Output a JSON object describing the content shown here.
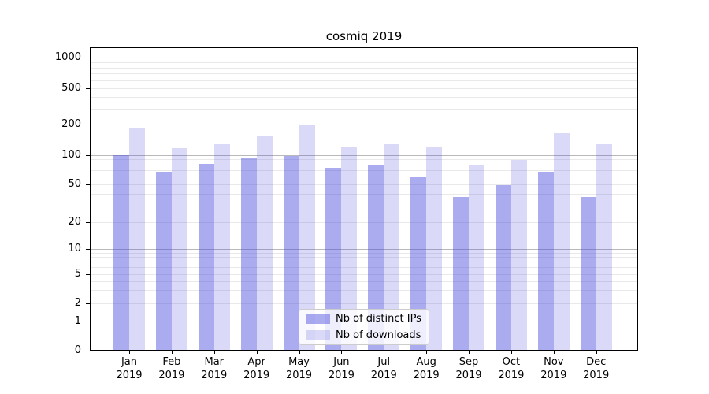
{
  "title": "cosmiq 2019",
  "legend": {
    "items": [
      {
        "label": "Nb of distinct IPs",
        "series": "ips"
      },
      {
        "label": "Nb of downloads",
        "series": "downloads"
      }
    ]
  },
  "colors": {
    "ips_bar": "rgba(68,68,221,0.45)",
    "downloads_bar": "rgba(68,68,221,0.2)",
    "major_gridline": "#b8b8b8",
    "minor_gridline": "#e9e9e9",
    "axis": "#000000",
    "legend_border": "#cccccc"
  },
  "y_axis": {
    "tick_values": [
      1000,
      500,
      200,
      100,
      50,
      20,
      10,
      5,
      2,
      1,
      0
    ],
    "major_gridline_values": [
      1,
      10,
      100,
      1000
    ],
    "minor_gridline_values": [
      2,
      3,
      4,
      5,
      6,
      7,
      8,
      9,
      20,
      30,
      40,
      50,
      60,
      70,
      80,
      90,
      200,
      300,
      400,
      500,
      600,
      700,
      800,
      900
    ]
  },
  "chart_data": {
    "type": "bar",
    "title": "cosmiq 2019",
    "categories": [
      "Jan 2019",
      "Feb 2019",
      "Mar 2019",
      "Apr 2019",
      "May 2019",
      "Jun 2019",
      "Jul 2019",
      "Aug 2019",
      "Sep 2019",
      "Oct 2019",
      "Nov 2019",
      "Dec 2019"
    ],
    "series": [
      {
        "name": "Nb of distinct IPs",
        "values": [
          100,
          68,
          81,
          93,
          97,
          74,
          80,
          60,
          37,
          49,
          68,
          37
        ]
      },
      {
        "name": "Nb of downloads",
        "values": [
          185,
          118,
          129,
          157,
          197,
          121,
          128,
          119,
          78,
          89,
          166,
          128
        ]
      }
    ],
    "xlabel": "",
    "ylabel": "",
    "yscale": "symlog",
    "y_ticks": [
      0,
      1,
      2,
      5,
      10,
      20,
      50,
      100,
      200,
      500,
      1000
    ],
    "ylim": [
      0,
      1285
    ],
    "grid": "both",
    "legend_position": "lower center"
  }
}
